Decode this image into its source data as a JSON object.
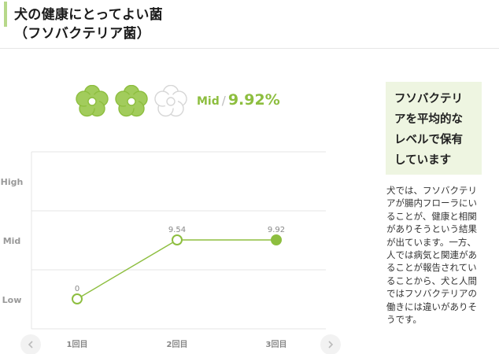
{
  "header": {
    "title_line1": "犬の健康にとってよい菌",
    "title_line2": "（フソバクテリア菌）"
  },
  "rating": {
    "level_label": "Mid",
    "separator": "/",
    "value_text": "9.92%",
    "filled_flowers": 2,
    "total_flowers": 3,
    "filled_color": "#a2cc5c",
    "empty_color": "#ffffff",
    "icon": "flower-icon"
  },
  "chart_data": {
    "type": "line",
    "categories": [
      "1回目",
      "2回目",
      "3回目"
    ],
    "y_levels": [
      "Low",
      "Mid",
      "High"
    ],
    "points": [
      {
        "category": "1回目",
        "level": "Low",
        "label": "0",
        "filled": false
      },
      {
        "category": "2回目",
        "level": "Mid",
        "label": "9.54",
        "filled": false
      },
      {
        "category": "3回目",
        "level": "Mid",
        "label": "9.92",
        "filled": true
      }
    ],
    "line_color": "#8dbe3f",
    "grid": true
  },
  "nav": {
    "prev_icon": "chevron-left-icon",
    "next_icon": "chevron-right-icon"
  },
  "summary": {
    "lines": [
      "フソバクテリ",
      "アを平均的な",
      "レベルで保有",
      "しています"
    ]
  },
  "description": {
    "lines": [
      "犬では、フソバクテリ",
      "アが腸内フローラにい",
      "ることが、健康と相関",
      "がありそうという結果",
      "が出ています。一方、",
      "人では病気と関連があ",
      "ることが報告されてい",
      "ることから、犬と人間",
      "ではフソバクテリアの",
      "働きには違いがありそ",
      "うです。"
    ]
  }
}
